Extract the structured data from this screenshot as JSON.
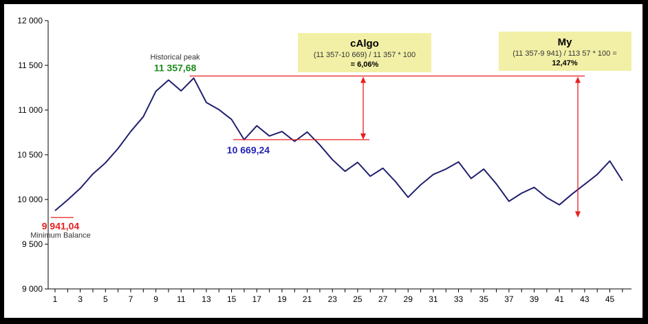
{
  "chart_data": {
    "type": "line",
    "title": "",
    "xlabel": "",
    "ylabel": "",
    "ylim": [
      9000,
      12000
    ],
    "yticks": [
      9000,
      9500,
      10000,
      10500,
      11000,
      11500,
      12000
    ],
    "ytick_labels": [
      "9 000",
      "9 500",
      "10 000",
      "10 500",
      "11 000",
      "11 500",
      "12 000"
    ],
    "xlim": [
      1,
      46
    ],
    "xtick_labels": [
      "1",
      "3",
      "5",
      "7",
      "9",
      "11",
      "13",
      "15",
      "17",
      "19",
      "21",
      "23",
      "25",
      "27",
      "29",
      "31",
      "33",
      "35",
      "37",
      "39",
      "41",
      "43",
      "45"
    ],
    "grid": false,
    "legend": "none",
    "line_color": "#1f1f6e",
    "series": [
      {
        "x": [
          1,
          2,
          3,
          4,
          5,
          6,
          7,
          8,
          9,
          10,
          11,
          12,
          13,
          14,
          15,
          16,
          17,
          18,
          19,
          20,
          21,
          22,
          23,
          24,
          25,
          26,
          27,
          28,
          29,
          30,
          31,
          32,
          33,
          34,
          35,
          36,
          37,
          38,
          39,
          40,
          41,
          42,
          43,
          44,
          45,
          46
        ],
        "values": [
          9875,
          9995,
          10125,
          10285,
          10410,
          10570,
          10760,
          10925,
          11210,
          11335,
          11215,
          11357.68,
          11085,
          11005,
          10895,
          10669.24,
          10825,
          10710,
          10760,
          10650,
          10755,
          10610,
          10445,
          10315,
          10415,
          10260,
          10350,
          10200,
          10025,
          10165,
          10280,
          10340,
          10420,
          10235,
          10340,
          10175,
          9980,
          10070,
          10135,
          10020,
          9941.04,
          10060,
          10170,
          10280,
          10430,
          10210
        ]
      }
    ],
    "annotations": {
      "peak_caption": "Historical peak",
      "peak_value": "11 357,68",
      "peak_color": "#1e8c1e",
      "local_min_value": "10 669,24",
      "local_min_color": "#2323b4",
      "min_value": "9 941,04",
      "min_color": "#e61e1e",
      "min_caption": "Minimum Balance",
      "ref_line_color": "#e61e1e",
      "box_color": "#f2f0a6",
      "calgo": {
        "title": "cAlgo",
        "formula": "(11 357-10 669) / 11 357 * 100",
        "result": "= 6,06%"
      },
      "my": {
        "title": "My",
        "formula": "(11 357-9 941) / 113 57 * 100 =",
        "result": "12,47%"
      }
    }
  }
}
